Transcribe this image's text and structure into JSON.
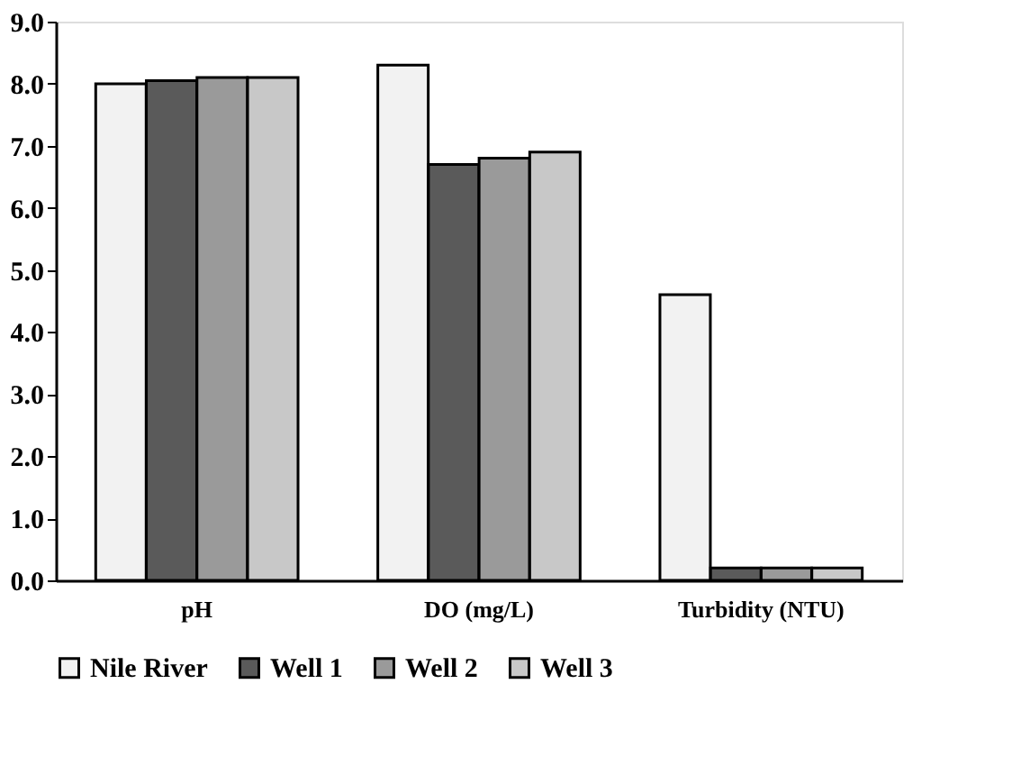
{
  "chart_data": {
    "type": "bar",
    "categories": [
      "pH",
      "DO (mg/L)",
      "Turbidity (NTU)"
    ],
    "series": [
      {
        "name": "Nile River",
        "color": "#f2f2f2",
        "values": [
          8.0,
          8.3,
          4.6
        ]
      },
      {
        "name": "Well 1",
        "color": "#5a5a5a",
        "values": [
          8.05,
          6.7,
          0.2
        ]
      },
      {
        "name": "Well 2",
        "color": "#9a9a9a",
        "values": [
          8.1,
          6.8,
          0.2
        ]
      },
      {
        "name": "Well 3",
        "color": "#c8c8c8",
        "values": [
          8.1,
          6.9,
          0.2
        ]
      }
    ],
    "ylim": [
      0,
      9
    ],
    "yticks": [
      {
        "value": 0,
        "label": "0.0"
      },
      {
        "value": 1,
        "label": "1.0"
      },
      {
        "value": 2,
        "label": "2.0"
      },
      {
        "value": 3,
        "label": "3.0"
      },
      {
        "value": 4,
        "label": "4.0"
      },
      {
        "value": 5,
        "label": "5.0"
      },
      {
        "value": 6,
        "label": "6.0"
      },
      {
        "value": 7,
        "label": "7.0"
      },
      {
        "value": 8,
        "label": "8.0"
      },
      {
        "value": 9,
        "label": "9.0"
      }
    ],
    "grid": false,
    "legend": "bottom"
  }
}
